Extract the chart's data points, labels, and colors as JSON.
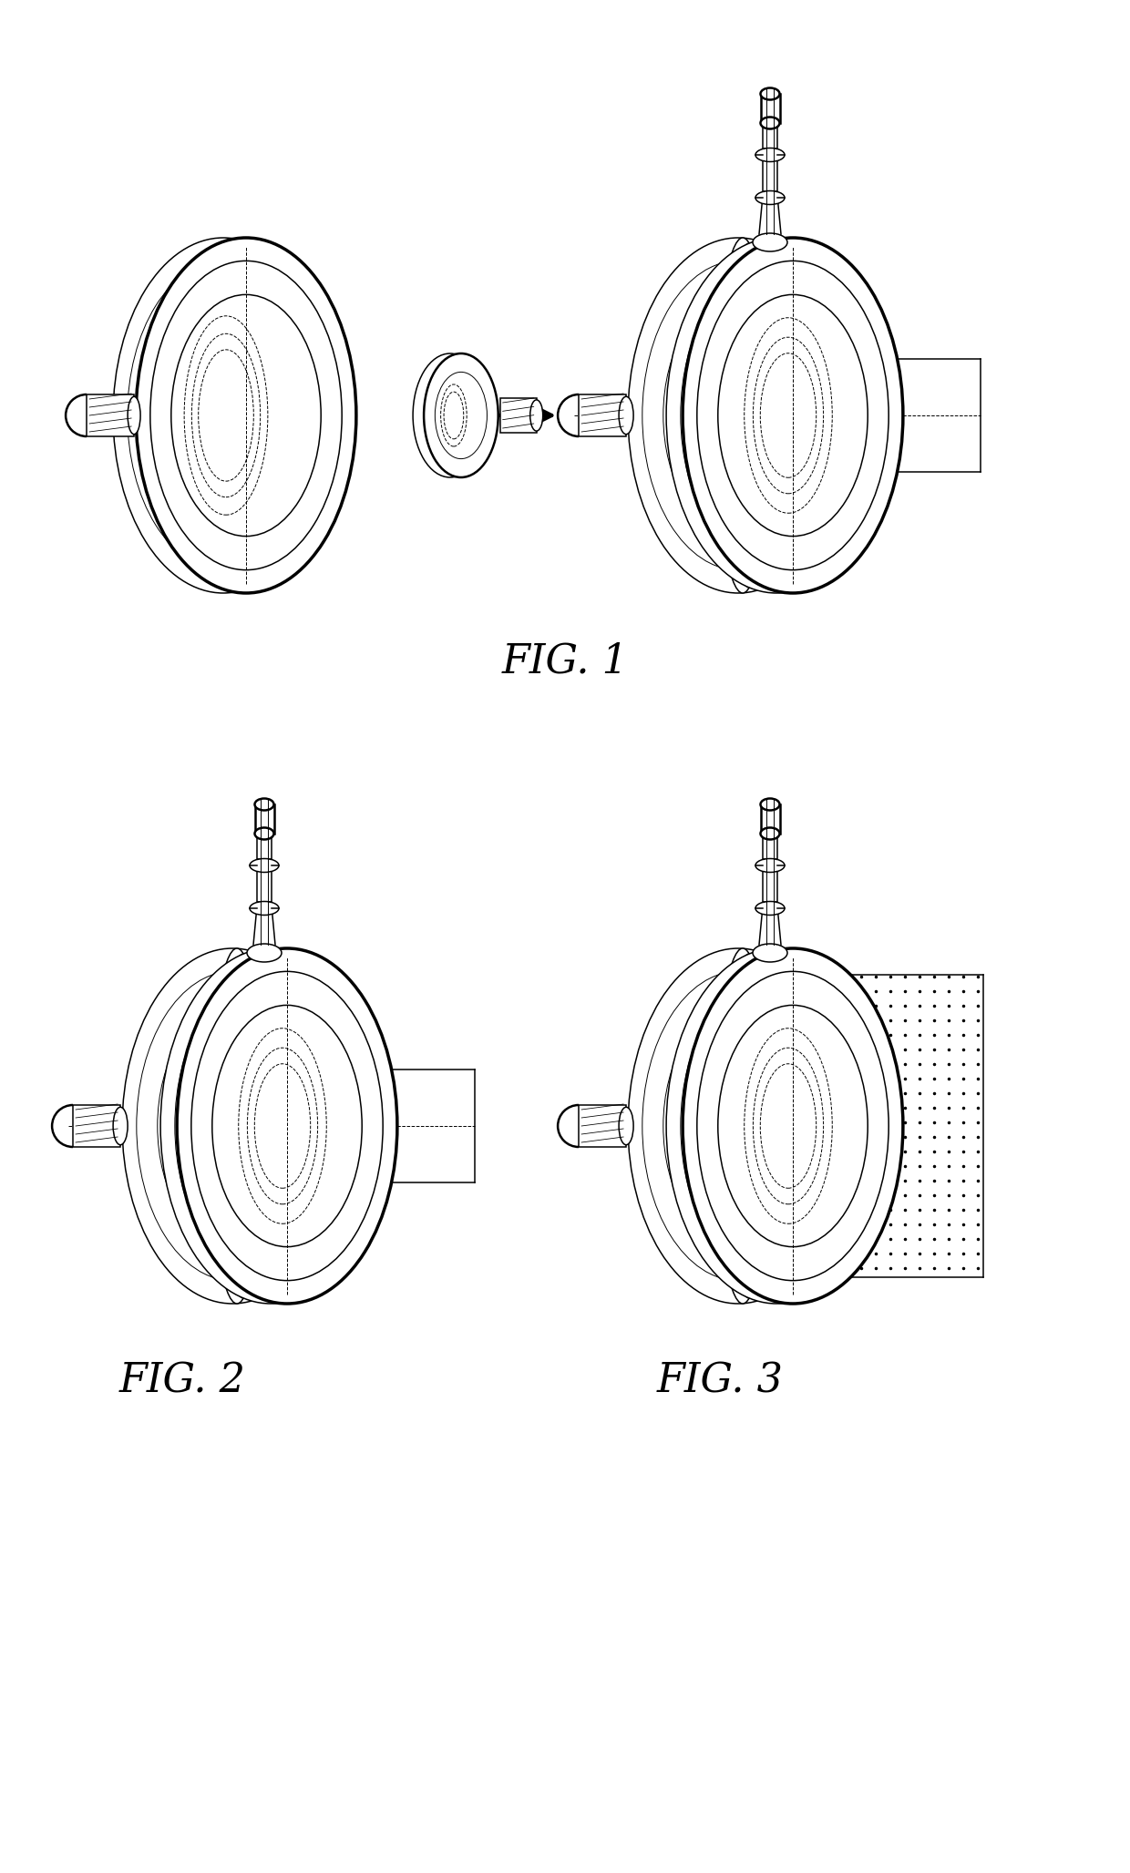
{
  "background_color": "#ffffff",
  "line_color": "#000000",
  "fig_size": [
    12.4,
    20.56
  ],
  "dpi": 100,
  "fig1_label": "FIG. 1",
  "fig2_label": "FIG. 2",
  "fig3_label": "FIG. 3"
}
